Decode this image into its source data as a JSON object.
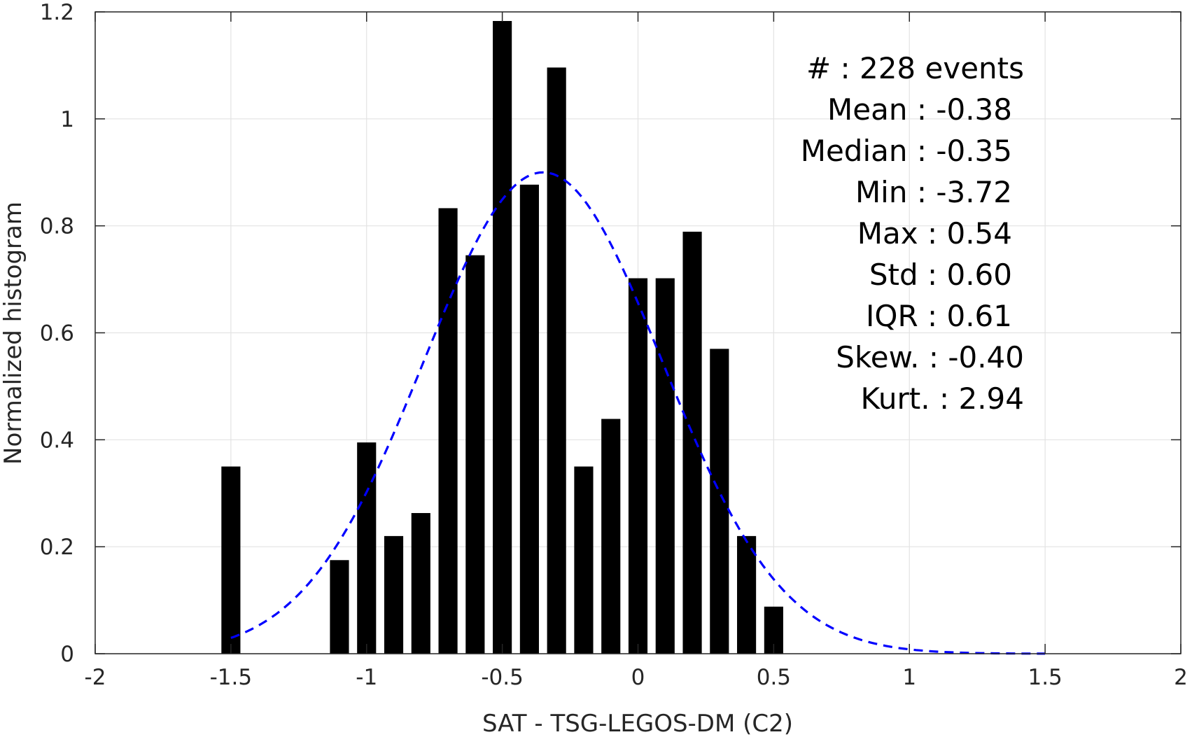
{
  "chart_data": {
    "type": "bar",
    "xlabel": "SAT - TSG-LEGOS-DM (C2)",
    "ylabel": "Normalized histogram",
    "xlim": [
      -2,
      2
    ],
    "ylim": [
      0,
      1.2
    ],
    "grid": true,
    "x_ticks": [
      {
        "value": -2,
        "label": "-2"
      },
      {
        "value": -1.5,
        "label": "-1.5"
      },
      {
        "value": -1,
        "label": "-1"
      },
      {
        "value": -0.5,
        "label": "-0.5"
      },
      {
        "value": 0,
        "label": "0"
      },
      {
        "value": 0.5,
        "label": "0.5"
      },
      {
        "value": 1,
        "label": "1"
      },
      {
        "value": 1.5,
        "label": "1.5"
      },
      {
        "value": 2,
        "label": "2"
      }
    ],
    "y_ticks": [
      {
        "value": 0,
        "label": "0"
      },
      {
        "value": 0.2,
        "label": "0.2"
      },
      {
        "value": 0.4,
        "label": "0.4"
      },
      {
        "value": 0.6,
        "label": "0.6"
      },
      {
        "value": 0.8,
        "label": "0.8"
      },
      {
        "value": 1,
        "label": "1"
      },
      {
        "value": 1.2,
        "label": "1.2"
      }
    ],
    "bar_width": 0.07,
    "bar_color": "#000000",
    "bars": [
      {
        "x": -1.5,
        "y": 0.35
      },
      {
        "x": -1.1,
        "y": 0.175
      },
      {
        "x": -1.0,
        "y": 0.395
      },
      {
        "x": -0.9,
        "y": 0.22
      },
      {
        "x": -0.8,
        "y": 0.263
      },
      {
        "x": -0.7,
        "y": 0.833
      },
      {
        "x": -0.6,
        "y": 0.745
      },
      {
        "x": -0.5,
        "y": 1.183
      },
      {
        "x": -0.4,
        "y": 0.877
      },
      {
        "x": -0.3,
        "y": 1.096
      },
      {
        "x": -0.2,
        "y": 0.35
      },
      {
        "x": -0.1,
        "y": 0.439
      },
      {
        "x": 0.0,
        "y": 0.702
      },
      {
        "x": 0.1,
        "y": 0.702
      },
      {
        "x": 0.2,
        "y": 0.789
      },
      {
        "x": 0.3,
        "y": 0.57
      },
      {
        "x": 0.4,
        "y": 0.22
      },
      {
        "x": 0.5,
        "y": 0.088
      }
    ],
    "fit_curve": {
      "style": "dashed",
      "color": "#0000ff",
      "mean": -0.35,
      "std": 0.44,
      "peak": 0.9,
      "x_range": [
        -1.5,
        1.5
      ]
    },
    "stats": [
      {
        "label": "#  : 228 events"
      },
      {
        "label": "Mean : -0.38"
      },
      {
        "label": "Median : -0.35"
      },
      {
        "label": "Min : -3.72"
      },
      {
        "label": "Max : 0.54"
      },
      {
        "label": "Std : 0.60"
      },
      {
        "label": "IQR : 0.61"
      },
      {
        "label": "Skew. : -0.40"
      },
      {
        "label": "Kurt. : 2.94"
      }
    ]
  }
}
